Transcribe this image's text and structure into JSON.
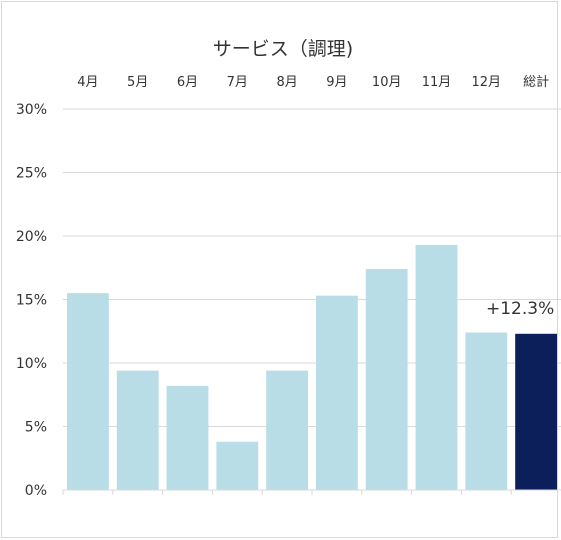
{
  "chart_data": {
    "type": "bar",
    "title": "サービス（調理)",
    "categories": [
      "4月",
      "5月",
      "6月",
      "7月",
      "8月",
      "9月",
      "10月",
      "11月",
      "12月",
      "総計"
    ],
    "values": [
      15.5,
      9.4,
      8.2,
      3.8,
      9.4,
      15.3,
      17.4,
      19.3,
      12.4,
      12.3
    ],
    "ylim": [
      0,
      30
    ],
    "yticks": [
      "0%",
      "5%",
      "10%",
      "15%",
      "20%",
      "25%",
      "30%"
    ],
    "ytick_values": [
      0,
      5,
      10,
      15,
      20,
      25,
      30
    ],
    "data_label": "+12.3%",
    "grid": true,
    "category_axis_position": "top",
    "colors": {
      "bar": "#b8dde6",
      "total": "#0c1f5b",
      "grid": "#d9d9d9"
    }
  }
}
